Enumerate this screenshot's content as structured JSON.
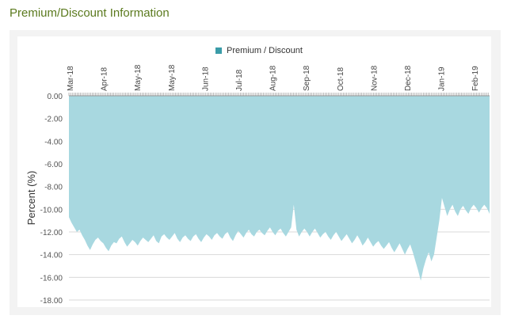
{
  "section": {
    "title": "Premium/Discount Information"
  },
  "colors": {
    "area_fill": "#a8d8e0",
    "legend_swatch": "#3a9ca8",
    "grid": "#d9d9d9",
    "title_green": "#5b7a1e"
  },
  "chart_data": {
    "type": "area",
    "title": "",
    "ylabel": "Percent (%)",
    "xlabel": "",
    "ylim": [
      -18,
      0
    ],
    "y_ticks": [
      "0.00",
      "-2.00",
      "-4.00",
      "-6.00",
      "-8.00",
      "-10.00",
      "-12.00",
      "-14.00",
      "-16.00",
      "-18.00"
    ],
    "y_tick_values": [
      0,
      -2,
      -4,
      -6,
      -8,
      -10,
      -12,
      -14,
      -16,
      -18
    ],
    "x_ticks": [
      "Mar-18",
      "Apr-18",
      "May-18",
      "May-18",
      "Jun-18",
      "Jul-18",
      "Aug-18",
      "Sep-18",
      "Oct-18",
      "Nov-18",
      "Dec-18",
      "Jan-19",
      "Feb-19"
    ],
    "grid": true,
    "legend": {
      "position": "top-center",
      "entries": [
        "Premium / Discount"
      ]
    },
    "series": [
      {
        "name": "Premium / Discount",
        "values": [
          -10.7,
          -11.2,
          -11.6,
          -12.0,
          -11.8,
          -12.3,
          -12.7,
          -13.2,
          -13.6,
          -13.1,
          -12.7,
          -12.5,
          -12.8,
          -13.0,
          -13.4,
          -13.7,
          -13.2,
          -12.9,
          -13.0,
          -12.6,
          -12.4,
          -12.9,
          -13.3,
          -13.0,
          -12.7,
          -12.9,
          -13.2,
          -12.8,
          -12.5,
          -12.7,
          -12.9,
          -12.6,
          -12.3,
          -12.8,
          -13.0,
          -12.4,
          -12.2,
          -12.5,
          -12.7,
          -12.4,
          -12.1,
          -12.6,
          -12.9,
          -12.5,
          -12.3,
          -12.6,
          -12.8,
          -12.4,
          -12.2,
          -12.6,
          -12.9,
          -12.5,
          -12.2,
          -12.4,
          -12.7,
          -12.3,
          -12.1,
          -12.4,
          -12.6,
          -12.2,
          -12.0,
          -12.5,
          -12.8,
          -12.3,
          -11.9,
          -12.2,
          -12.5,
          -12.1,
          -11.8,
          -12.2,
          -12.4,
          -12.0,
          -11.8,
          -12.1,
          -12.3,
          -11.9,
          -11.6,
          -12.0,
          -12.3,
          -11.9,
          -11.7,
          -12.1,
          -12.4,
          -12.0,
          -11.6,
          -9.6,
          -11.8,
          -12.4,
          -12.0,
          -11.7,
          -12.0,
          -12.4,
          -12.0,
          -11.7,
          -12.1,
          -12.5,
          -12.2,
          -12.0,
          -12.4,
          -12.7,
          -12.3,
          -12.0,
          -12.4,
          -12.8,
          -12.5,
          -12.2,
          -12.6,
          -13.0,
          -12.7,
          -12.3,
          -12.7,
          -13.2,
          -12.9,
          -12.5,
          -12.9,
          -13.3,
          -13.0,
          -12.8,
          -13.2,
          -13.5,
          -13.2,
          -12.9,
          -13.4,
          -13.8,
          -13.4,
          -13.0,
          -13.5,
          -14.0,
          -13.5,
          -13.1,
          -13.8,
          -14.6,
          -15.4,
          -16.3,
          -15.2,
          -14.4,
          -13.8,
          -14.6,
          -14.0,
          -12.5,
          -11.0,
          -9.0,
          -9.8,
          -10.6,
          -10.0,
          -9.6,
          -10.2,
          -10.6,
          -10.0,
          -9.7,
          -10.1,
          -10.4,
          -9.9,
          -9.6,
          -9.9,
          -10.3,
          -9.9,
          -9.6,
          -9.9,
          -10.4
        ]
      }
    ]
  }
}
